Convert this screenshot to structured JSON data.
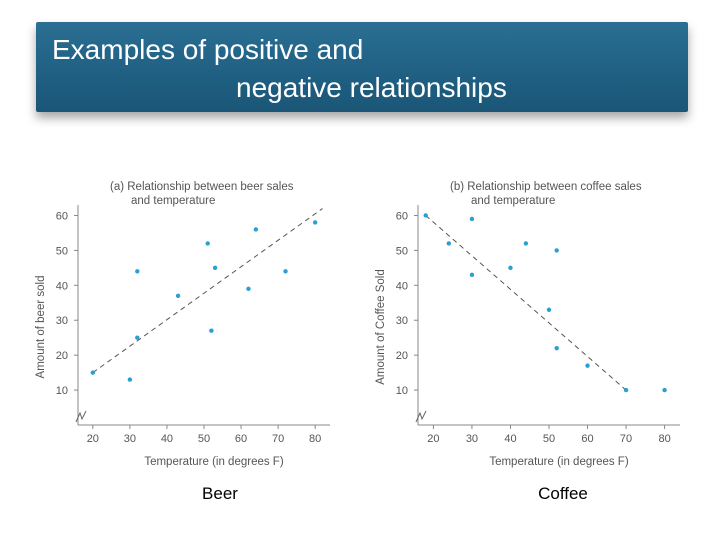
{
  "title": {
    "line1": "Examples of positive and",
    "line2": "negative relationships"
  },
  "accent_color": "#1f5f82",
  "point_color": "#2a9fd0",
  "labels": {
    "left": "Beer",
    "right": "Coffee"
  },
  "chart_data": [
    {
      "type": "scatter",
      "title_line1": "(a) Relationship between beer sales",
      "title_line2": "and temperature",
      "xlabel": "Temperature (in degrees F)",
      "ylabel": "Amount of beer sold",
      "xticks": [
        20,
        30,
        40,
        50,
        60,
        70,
        80
      ],
      "yticks": [
        10,
        20,
        30,
        40,
        50,
        60
      ],
      "xlim": [
        16,
        84
      ],
      "ylim": [
        0,
        63
      ],
      "points": [
        {
          "x": 20,
          "y": 15
        },
        {
          "x": 30,
          "y": 13
        },
        {
          "x": 32,
          "y": 25
        },
        {
          "x": 32,
          "y": 44
        },
        {
          "x": 43,
          "y": 37
        },
        {
          "x": 51,
          "y": 52
        },
        {
          "x": 52,
          "y": 27
        },
        {
          "x": 53,
          "y": 45
        },
        {
          "x": 62,
          "y": 39
        },
        {
          "x": 64,
          "y": 56
        },
        {
          "x": 72,
          "y": 44
        },
        {
          "x": 80,
          "y": 58
        }
      ],
      "trendline": [
        {
          "x": 20,
          "y": 15
        },
        {
          "x": 82,
          "y": 62
        }
      ]
    },
    {
      "type": "scatter",
      "title_line1": "(b) Relationship between coffee sales",
      "title_line2": "and temperature",
      "xlabel": "Temperature (in degrees F)",
      "ylabel": "Amount of Coffee Sold",
      "xticks": [
        20,
        30,
        40,
        50,
        60,
        70,
        80
      ],
      "yticks": [
        10,
        20,
        30,
        40,
        50,
        60
      ],
      "xlim": [
        16,
        84
      ],
      "ylim": [
        0,
        63
      ],
      "points": [
        {
          "x": 18,
          "y": 60
        },
        {
          "x": 24,
          "y": 52
        },
        {
          "x": 30,
          "y": 59
        },
        {
          "x": 30,
          "y": 43
        },
        {
          "x": 40,
          "y": 45
        },
        {
          "x": 44,
          "y": 52
        },
        {
          "x": 50,
          "y": 33
        },
        {
          "x": 52,
          "y": 50
        },
        {
          "x": 52,
          "y": 22
        },
        {
          "x": 60,
          "y": 17
        },
        {
          "x": 70,
          "y": 10
        },
        {
          "x": 80,
          "y": 10
        }
      ],
      "trendline": [
        {
          "x": 18,
          "y": 60
        },
        {
          "x": 70,
          "y": 10
        }
      ]
    }
  ]
}
